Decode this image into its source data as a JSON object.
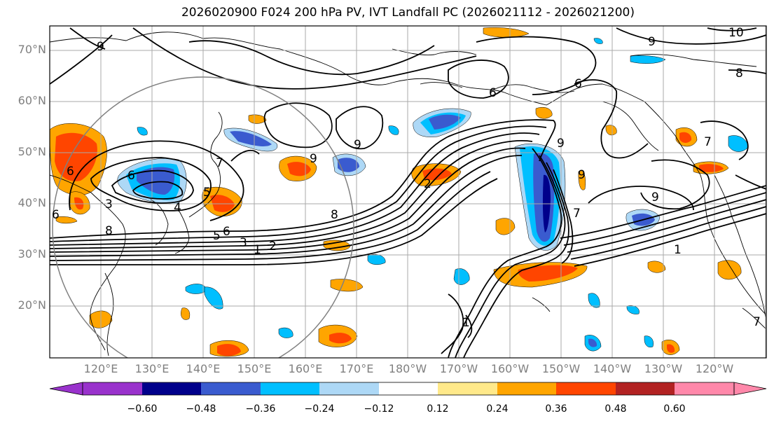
{
  "title": "2026020900 F024 200 hPa PV, IVT Landfall PC (2026021112 - 2026021200)",
  "map": {
    "lat_labels": [
      "70°N",
      "60°N",
      "50°N",
      "40°N",
      "30°N",
      "20°N"
    ],
    "lon_labels": [
      "120°E",
      "130°E",
      "140°E",
      "150°E",
      "160°E",
      "170°E",
      "180°W",
      "170°W",
      "160°W",
      "150°W",
      "140°W",
      "130°W",
      "120°W"
    ],
    "contour_labels": [
      "9",
      "9",
      "10",
      "8",
      "9",
      "9",
      "6",
      "6",
      "6",
      "9",
      "7",
      "6",
      "7",
      "8",
      "9",
      "3",
      "4",
      "5",
      "6",
      "5",
      "6",
      "3",
      "1",
      "2",
      "8",
      "2",
      "7",
      "9",
      "1",
      "1",
      "7"
    ],
    "colors": {
      "land_border": "#000000",
      "grid": "#aaaaaa",
      "circle": "#808080"
    }
  },
  "colorbar": {
    "tick_labels": [
      "−0.60",
      "−0.48",
      "−0.36",
      "−0.24",
      "−0.12",
      "0.12",
      "0.24",
      "0.36",
      "0.48",
      "0.60"
    ],
    "colors": [
      "#9932cc",
      "#00008b",
      "#3a5bcf",
      "#00bfff",
      "#add8f6",
      "#ffffff",
      "#ffe98a",
      "#ffa500",
      "#ff4500",
      "#b22222",
      "#ff88aa"
    ]
  }
}
